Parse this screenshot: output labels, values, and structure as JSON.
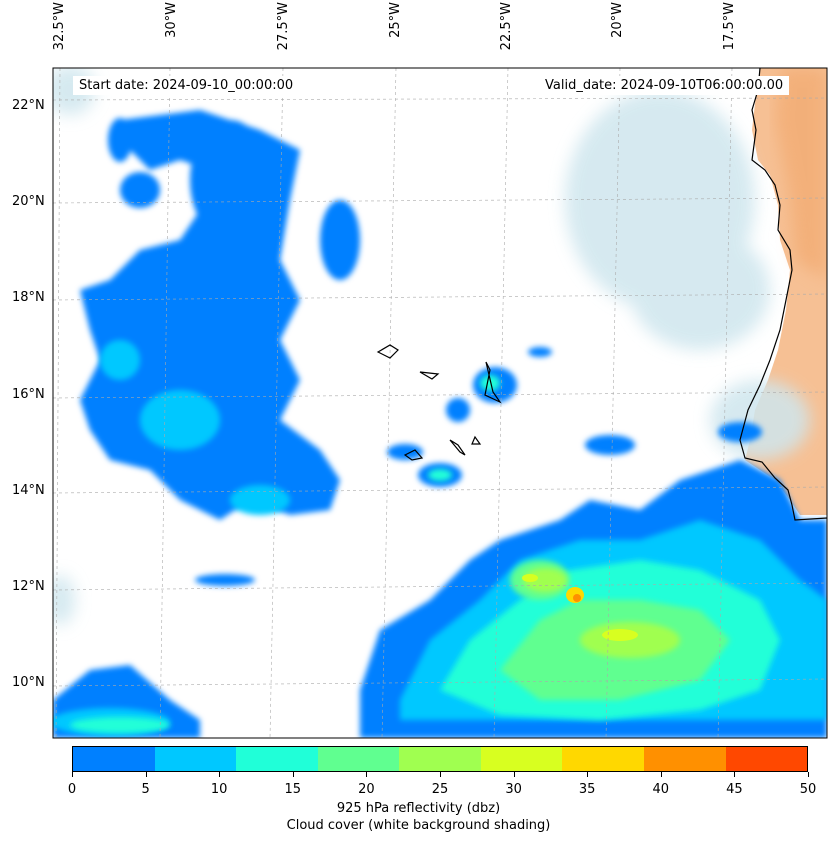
{
  "header": {
    "start_date": "Start date: 2024-09-10_00:00:00",
    "valid_date": "Valid_date: 2024-09-10T06:00:00.00"
  },
  "lon_labels": [
    "32.5°W",
    "30°W",
    "27.5°W",
    "25°W",
    "22.5°W",
    "20°W",
    "17.5°W"
  ],
  "lat_labels": [
    "22°N",
    "20°N",
    "18°N",
    "16°N",
    "14°N",
    "12°N",
    "10°N"
  ],
  "colorbar": {
    "ticks": [
      "0",
      "5",
      "10",
      "15",
      "20",
      "25",
      "30",
      "35",
      "40",
      "45",
      "50"
    ],
    "colors": [
      "#0080ff",
      "#00c8ff",
      "#20ffd8",
      "#60ff90",
      "#a0ff50",
      "#d8ff20",
      "#ffd800",
      "#ff9000",
      "#ff4800"
    ],
    "label": "925 hPa reflectivity (dbz)",
    "sublabel": "Cloud cover (white background shading)"
  },
  "theme": {
    "land_color": "#f5b988",
    "cloud_color": "#cfe6ee"
  }
}
